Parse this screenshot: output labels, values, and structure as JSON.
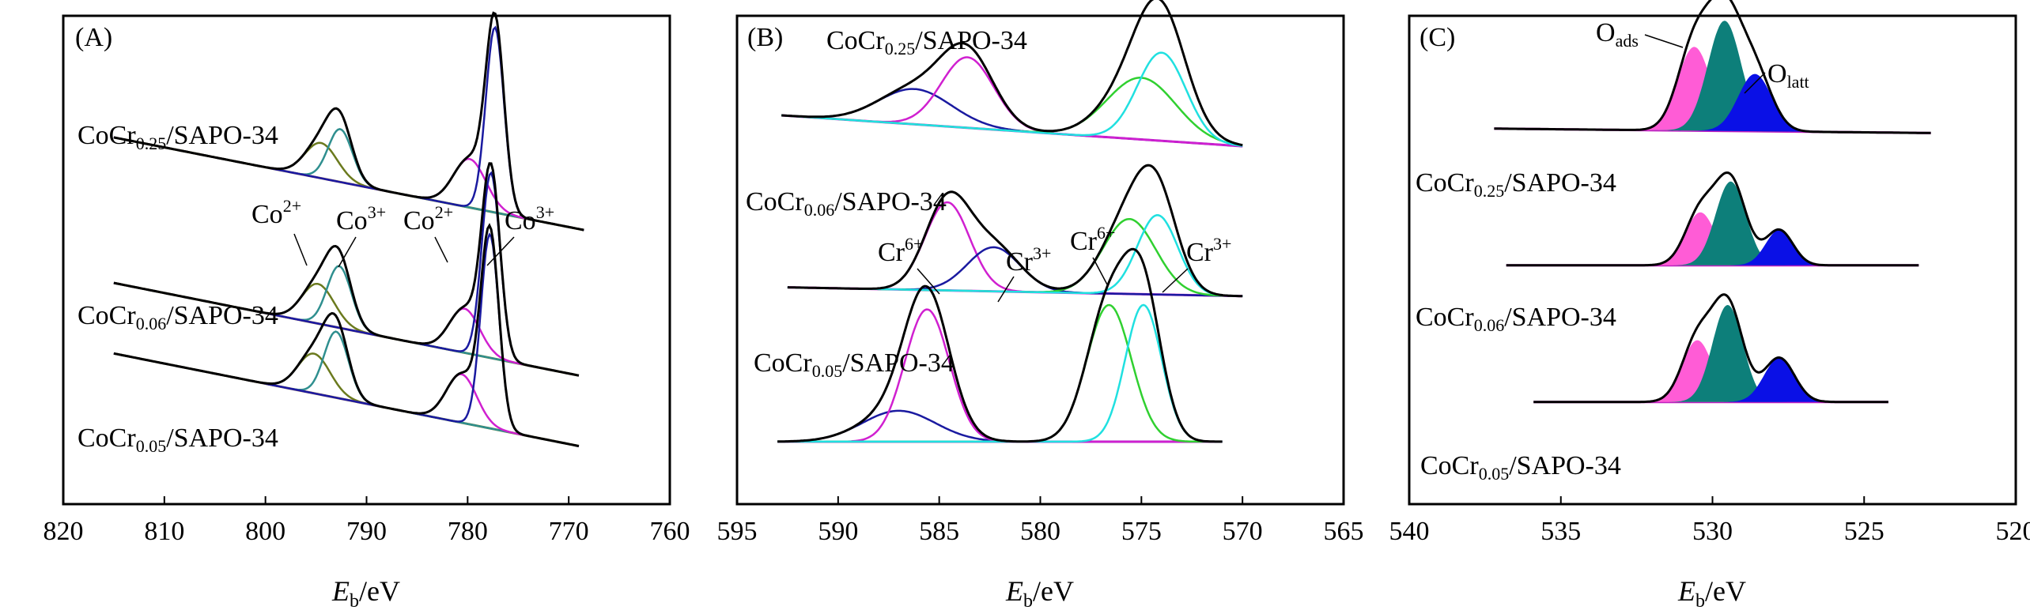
{
  "chart_data": [
    {
      "type": "line",
      "panel_label": "(A)",
      "xlabel_main": "E",
      "xlabel_sub": "b",
      "xlabel_unit": "/eV",
      "xlim": [
        820,
        760
      ],
      "xticks": [
        "820",
        "810",
        "800",
        "790",
        "780",
        "770",
        "760"
      ],
      "xtick_values": [
        820,
        810,
        800,
        790,
        780,
        770,
        760
      ],
      "ylim": [
        0,
        1
      ],
      "y_scale": "arbitrary",
      "colors": {
        "envelope": "#000000",
        "co2_a": "#6b7a1e",
        "co3_a": "#2f8f8f",
        "co2_b": "#d020d0",
        "co3_b": "#1a1aa0",
        "background": "#8a8a2a"
      },
      "labels": {
        "s1_prefix": "CoCr",
        "s1_sub": "0.25",
        "s1_suffix": "/SAPO-34",
        "s2_prefix": "CoCr",
        "s2_sub": "0.06",
        "s2_suffix": "/SAPO-34",
        "s3_prefix": "CoCr",
        "s3_sub": "0.05",
        "s3_suffix": "/SAPO-34",
        "peak1_base": "Co",
        "peak1_sup": "2+",
        "peak2_base": "Co",
        "peak2_sup": "3+",
        "peak3_base": "Co",
        "peak3_sup": "2+",
        "peak4_base": "Co",
        "peak4_sup": "3+"
      },
      "spectra": [
        {
          "name": "CoCr0.25/SAPO-34",
          "x_start": 815,
          "x_end": 768.5,
          "baseline_start": 0.76,
          "baseline_end": 0.55,
          "peaks": [
            {
              "center": 794.5,
              "height": 0.08,
              "width": 1.6,
              "color_key": "co2_a"
            },
            {
              "center": 792.6,
              "height": 0.12,
              "width": 1.2,
              "color_key": "co3_a"
            },
            {
              "center": 779.8,
              "height": 0.11,
              "width": 1.6,
              "color_key": "co2_b"
            },
            {
              "center": 777.3,
              "height": 0.42,
              "width": 0.9,
              "color_key": "co3_b"
            }
          ]
        },
        {
          "name": "CoCr0.06/SAPO-34",
          "x_start": 815,
          "x_end": 769,
          "baseline_start": 0.43,
          "baseline_end": 0.22,
          "peaks": [
            {
              "center": 794.8,
              "height": 0.09,
              "width": 1.6,
              "color_key": "co2_a"
            },
            {
              "center": 792.7,
              "height": 0.14,
              "width": 1.2,
              "color_key": "co3_a"
            },
            {
              "center": 780.3,
              "height": 0.1,
              "width": 1.5,
              "color_key": "co2_b"
            },
            {
              "center": 777.7,
              "height": 0.42,
              "width": 0.9,
              "color_key": "co3_b"
            }
          ]
        },
        {
          "name": "CoCr0.05/SAPO-34",
          "x_start": 815,
          "x_end": 769,
          "baseline_start": 0.27,
          "baseline_end": 0.06,
          "peaks": [
            {
              "center": 795.2,
              "height": 0.09,
              "width": 1.6,
              "color_key": "co2_a"
            },
            {
              "center": 793.0,
              "height": 0.15,
              "width": 1.2,
              "color_key": "co3_a"
            },
            {
              "center": 780.6,
              "height": 0.11,
              "width": 1.5,
              "color_key": "co2_b"
            },
            {
              "center": 777.8,
              "height": 0.44,
              "width": 0.9,
              "color_key": "co3_b"
            }
          ]
        }
      ]
    },
    {
      "type": "line",
      "panel_label": "(B)",
      "xlabel_main": "E",
      "xlabel_sub": "b",
      "xlabel_unit": "/eV",
      "xlim": [
        595,
        565
      ],
      "xticks": [
        "595",
        "590",
        "585",
        "580",
        "575",
        "570",
        "565"
      ],
      "xtick_values": [
        595,
        590,
        585,
        580,
        575,
        570,
        565
      ],
      "ylim": [
        0,
        1
      ],
      "y_scale": "arbitrary",
      "colors": {
        "envelope": "#000000",
        "cr3_a": "#1a1aa0",
        "cr6_a": "#d020d0",
        "cr6_b": "#30d030",
        "cr3_b": "#20e0e0",
        "background": "#d020d0"
      },
      "labels": {
        "s1_prefix": "CoCr",
        "s1_sub": "0.25",
        "s1_suffix": "/SAPO-34",
        "s2_prefix": "CoCr",
        "s2_sub": "0.06",
        "s2_suffix": "/SAPO-34",
        "s3_prefix": "CoCr",
        "s3_sub": "0.05",
        "s3_suffix": "/SAPO-34",
        "peak1_base": "Cr",
        "peak1_sup": "6+",
        "peak2_base": "Cr",
        "peak2_sup": "3+",
        "peak3_base": "Cr",
        "peak3_sup": "6+",
        "peak4_base": "Cr",
        "peak4_sup": "3+"
      },
      "spectra": [
        {
          "name": "CoCr0.25/SAPO-34",
          "x_start": 592.8,
          "x_end": 570,
          "baseline_start": 0.81,
          "baseline_end": 0.74,
          "peaks": [
            {
              "center": 586.2,
              "height": 0.08,
              "width": 1.8,
              "color_key": "cr3_a"
            },
            {
              "center": 583.6,
              "height": 0.16,
              "width": 1.3,
              "color_key": "cr6_a"
            },
            {
              "center": 575.0,
              "height": 0.14,
              "width": 1.7,
              "color_key": "cr6_b"
            },
            {
              "center": 574.0,
              "height": 0.2,
              "width": 1.2,
              "color_key": "cr3_b"
            }
          ]
        },
        {
          "name": "CoCr0.06/SAPO-34",
          "x_start": 592.5,
          "x_end": 570,
          "baseline_start": 0.42,
          "baseline_end": 0.4,
          "peaks": [
            {
              "center": 584.6,
              "height": 0.2,
              "width": 1.1,
              "color_key": "cr6_a"
            },
            {
              "center": 582.3,
              "height": 0.1,
              "width": 1.3,
              "color_key": "cr3_a"
            },
            {
              "center": 575.6,
              "height": 0.17,
              "width": 1.3,
              "color_key": "cr6_b"
            },
            {
              "center": 574.2,
              "height": 0.18,
              "width": 1.0,
              "color_key": "cr3_b"
            }
          ]
        },
        {
          "name": "CoCr0.05/SAPO-34",
          "x_start": 593,
          "x_end": 571,
          "baseline_start": 0.07,
          "baseline_end": 0.07,
          "peaks": [
            {
              "center": 587.0,
              "height": 0.07,
              "width": 1.8,
              "color_key": "cr3_a"
            },
            {
              "center": 585.6,
              "height": 0.3,
              "width": 1.1,
              "color_key": "cr6_a"
            },
            {
              "center": 576.6,
              "height": 0.31,
              "width": 1.1,
              "color_key": "cr6_b"
            },
            {
              "center": 574.9,
              "height": 0.31,
              "width": 0.9,
              "color_key": "cr3_b"
            }
          ]
        }
      ]
    },
    {
      "type": "area",
      "panel_label": "(C)",
      "xlabel_main": "E",
      "xlabel_sub": "b",
      "xlabel_unit": "/eV",
      "xlim": [
        540,
        520
      ],
      "xticks": [
        "540",
        "535",
        "530",
        "525",
        "520"
      ],
      "xtick_values": [
        540,
        535,
        530,
        525,
        520
      ],
      "ylim": [
        0,
        1
      ],
      "y_scale": "arbitrary",
      "colors": {
        "envelope": "#000000",
        "pink": "#ff5cd6",
        "teal": "#0d7f7a",
        "blue": "#0a10e6",
        "background": "#c020c0"
      },
      "labels": {
        "s1_prefix": "CoCr",
        "s1_sub": "0.25",
        "s1_suffix": "/SAPO-34",
        "s2_prefix": "CoCr",
        "s2_sub": "0.06",
        "s2_suffix": "/SAPO-34",
        "s3_prefix": "CoCr",
        "s3_sub": "0.05",
        "s3_suffix": "/SAPO-34",
        "oads_base": "O",
        "oads_sub": "ads",
        "olatt_base": "O",
        "olatt_sub": "latt"
      },
      "spectra": [
        {
          "name": "CoCr0.25/SAPO-34",
          "x_start": 537.2,
          "x_end": 522.8,
          "baseline_start": 0.78,
          "baseline_end": 0.77,
          "peaks": [
            {
              "center": 530.6,
              "height": 0.19,
              "width": 0.55,
              "color_key": "pink"
            },
            {
              "center": 529.6,
              "height": 0.25,
              "width": 0.55,
              "color_key": "teal"
            },
            {
              "center": 528.6,
              "height": 0.13,
              "width": 0.55,
              "color_key": "blue"
            }
          ]
        },
        {
          "name": "CoCr0.06/SAPO-34",
          "x_start": 536.8,
          "x_end": 523.2,
          "baseline_start": 0.47,
          "baseline_end": 0.47,
          "peaks": [
            {
              "center": 530.4,
              "height": 0.12,
              "width": 0.5,
              "color_key": "pink"
            },
            {
              "center": 529.4,
              "height": 0.19,
              "width": 0.5,
              "color_key": "teal"
            },
            {
              "center": 527.8,
              "height": 0.08,
              "width": 0.45,
              "color_key": "blue"
            }
          ]
        },
        {
          "name": "CoCr0.05/SAPO-34",
          "x_start": 535.9,
          "x_end": 524.2,
          "baseline_start": 0.16,
          "baseline_end": 0.16,
          "peaks": [
            {
              "center": 530.5,
              "height": 0.14,
              "width": 0.5,
              "color_key": "pink"
            },
            {
              "center": 529.5,
              "height": 0.22,
              "width": 0.5,
              "color_key": "teal"
            },
            {
              "center": 527.8,
              "height": 0.1,
              "width": 0.5,
              "color_key": "blue"
            }
          ]
        }
      ]
    }
  ]
}
